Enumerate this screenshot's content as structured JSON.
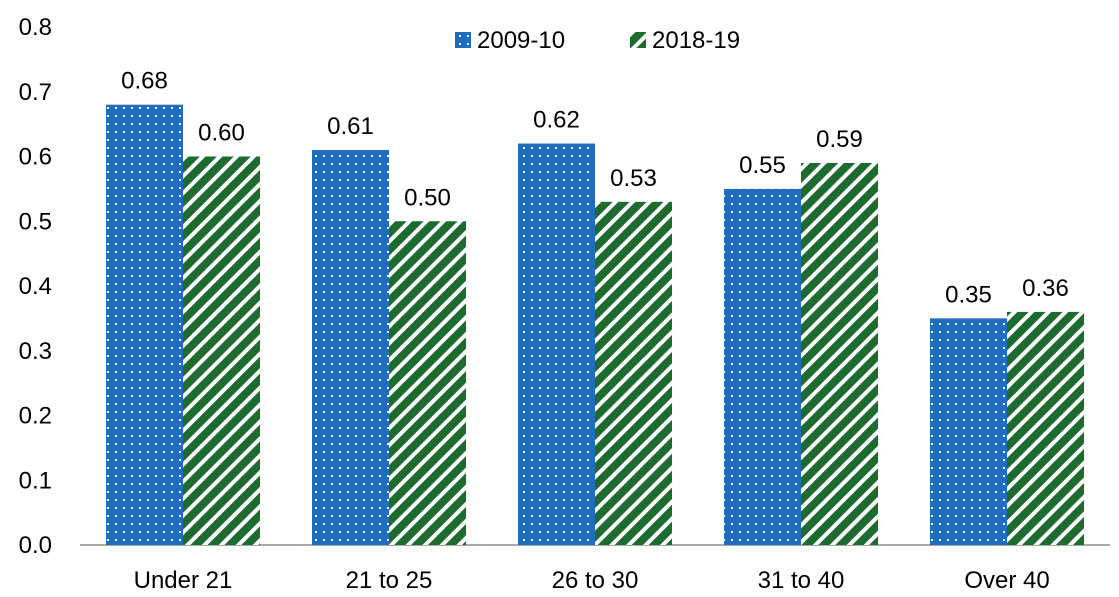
{
  "chart_data": {
    "type": "bar",
    "categories": [
      "Under 21",
      "21 to 25",
      "26 to 30",
      "31 to 40",
      "Over 40"
    ],
    "series": [
      {
        "name": "2009-10",
        "values": [
          0.68,
          0.61,
          0.62,
          0.55,
          0.35
        ],
        "labels": [
          "0.68",
          "0.61",
          "0.62",
          "0.55",
          "0.35"
        ],
        "color": "#1f6cc0",
        "pattern": "dotted"
      },
      {
        "name": "2018-19",
        "values": [
          0.6,
          0.5,
          0.53,
          0.59,
          0.36
        ],
        "labels": [
          "0.60",
          "0.50",
          "0.53",
          "0.59",
          "0.36"
        ],
        "color": "#1e6b2f",
        "pattern": "diagonal-stripes"
      }
    ],
    "ylim": [
      0,
      0.8
    ],
    "yticks": [
      "0.0",
      "0.1",
      "0.2",
      "0.3",
      "0.4",
      "0.5",
      "0.6",
      "0.7",
      "0.8"
    ],
    "grid": false,
    "legend_position": "top-center"
  }
}
